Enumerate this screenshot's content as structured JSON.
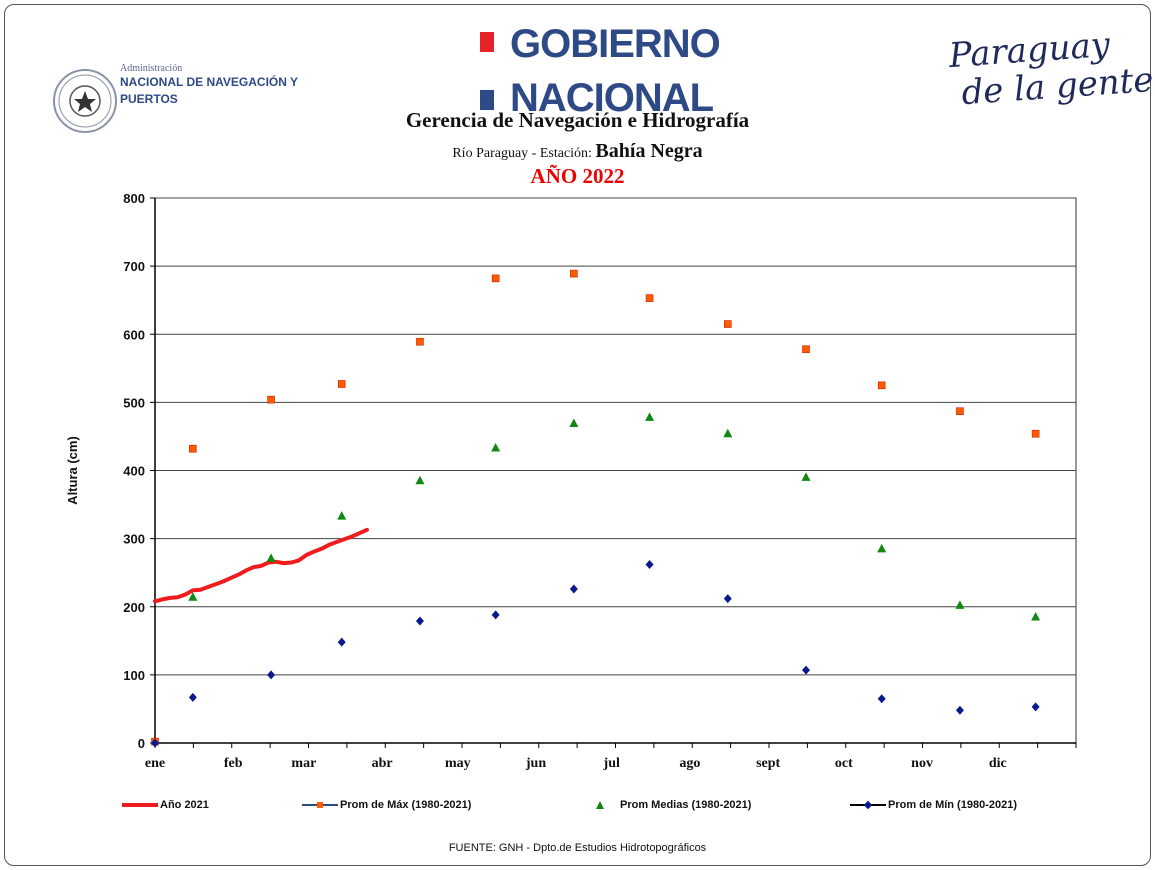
{
  "header": {
    "org_small": "Administración",
    "org_line1": "NACIONAL DE NAVEGACIÓN Y",
    "org_line2": "PUERTOS",
    "gov_line1": "GOBIERNO",
    "gov_line2": "NACIONAL",
    "slogan_line1": "Paraguay",
    "slogan_line2": "de la gente"
  },
  "chart_data": {
    "type": "scatter",
    "title": "Gerencia de Navegación e Hidrografía",
    "subtitle_prefix": "Río Paraguay  -  Estación:",
    "subtitle_station": "Bahía Negra",
    "year_title": "AÑO 2022",
    "xlabel": "",
    "ylabel": "Altura (cm)",
    "ylim": [
      0,
      800
    ],
    "y_ticks": [
      0,
      100,
      200,
      300,
      400,
      500,
      600,
      700,
      800
    ],
    "x_range": [
      0,
      365
    ],
    "months": [
      {
        "label": "ene",
        "day": 0
      },
      {
        "label": "feb",
        "day": 31
      },
      {
        "label": "mar",
        "day": 59
      },
      {
        "label": "abr",
        "day": 90
      },
      {
        "label": "may",
        "day": 120
      },
      {
        "label": "jun",
        "day": 151
      },
      {
        "label": "jul",
        "day": 181
      },
      {
        "label": "ago",
        "day": 212
      },
      {
        "label": "sept",
        "day": 243
      },
      {
        "label": "oct",
        "day": 273
      },
      {
        "label": "nov",
        "day": 304
      },
      {
        "label": "dic",
        "day": 334
      }
    ],
    "grid": true,
    "legend_position": "bottom",
    "series": [
      {
        "name": "Año 2021",
        "kind": "line",
        "color": "#ee1c1c",
        "points": [
          [
            0,
            208
          ],
          [
            3,
            211
          ],
          [
            6,
            213
          ],
          [
            9,
            214
          ],
          [
            12,
            218
          ],
          [
            15,
            224
          ],
          [
            18,
            225
          ],
          [
            21,
            229
          ],
          [
            24,
            233
          ],
          [
            27,
            237
          ],
          [
            30,
            242
          ],
          [
            33,
            247
          ],
          [
            36,
            253
          ],
          [
            39,
            258
          ],
          [
            42,
            260
          ],
          [
            45,
            265
          ],
          [
            48,
            266
          ],
          [
            51,
            264
          ],
          [
            54,
            265
          ],
          [
            57,
            268
          ],
          [
            60,
            276
          ],
          [
            63,
            281
          ],
          [
            66,
            285
          ],
          [
            69,
            291
          ],
          [
            72,
            295
          ],
          [
            75,
            299
          ],
          [
            78,
            303
          ],
          [
            81,
            308
          ],
          [
            84,
            313
          ]
        ]
      },
      {
        "name": "Prom de Máx (1980-2021)",
        "kind": "marker",
        "marker": "square",
        "color": "#ff5a00",
        "points": [
          [
            0,
            2
          ],
          [
            15,
            432
          ],
          [
            46,
            504
          ],
          [
            74,
            527
          ],
          [
            105,
            589
          ],
          [
            135,
            682
          ],
          [
            166,
            689
          ],
          [
            196,
            653
          ],
          [
            227,
            615
          ],
          [
            258,
            578
          ],
          [
            288,
            525
          ],
          [
            319,
            487
          ],
          [
            349,
            454
          ]
        ]
      },
      {
        "name": "Prom Medias (1980-2021)",
        "kind": "marker",
        "marker": "triangle",
        "color": "#118811",
        "points": [
          [
            15,
            214
          ],
          [
            46,
            271
          ],
          [
            74,
            333
          ],
          [
            105,
            385
          ],
          [
            135,
            433
          ],
          [
            166,
            469
          ],
          [
            196,
            478
          ],
          [
            227,
            454
          ],
          [
            258,
            390
          ],
          [
            288,
            285
          ],
          [
            319,
            202
          ],
          [
            349,
            185
          ]
        ]
      },
      {
        "name": "Prom de Mín  (1980-2021)",
        "kind": "marker",
        "marker": "diamond",
        "color": "#0a1a8c",
        "points": [
          [
            0,
            0
          ],
          [
            15,
            67
          ],
          [
            46,
            100
          ],
          [
            74,
            148
          ],
          [
            105,
            179
          ],
          [
            135,
            188
          ],
          [
            166,
            226
          ],
          [
            196,
            262
          ],
          [
            227,
            212
          ],
          [
            258,
            107
          ],
          [
            288,
            65
          ],
          [
            319,
            48
          ],
          [
            349,
            53
          ]
        ]
      }
    ],
    "source": "FUENTE: GNH - Dpto.de Estudios Hidrotopográficos"
  }
}
